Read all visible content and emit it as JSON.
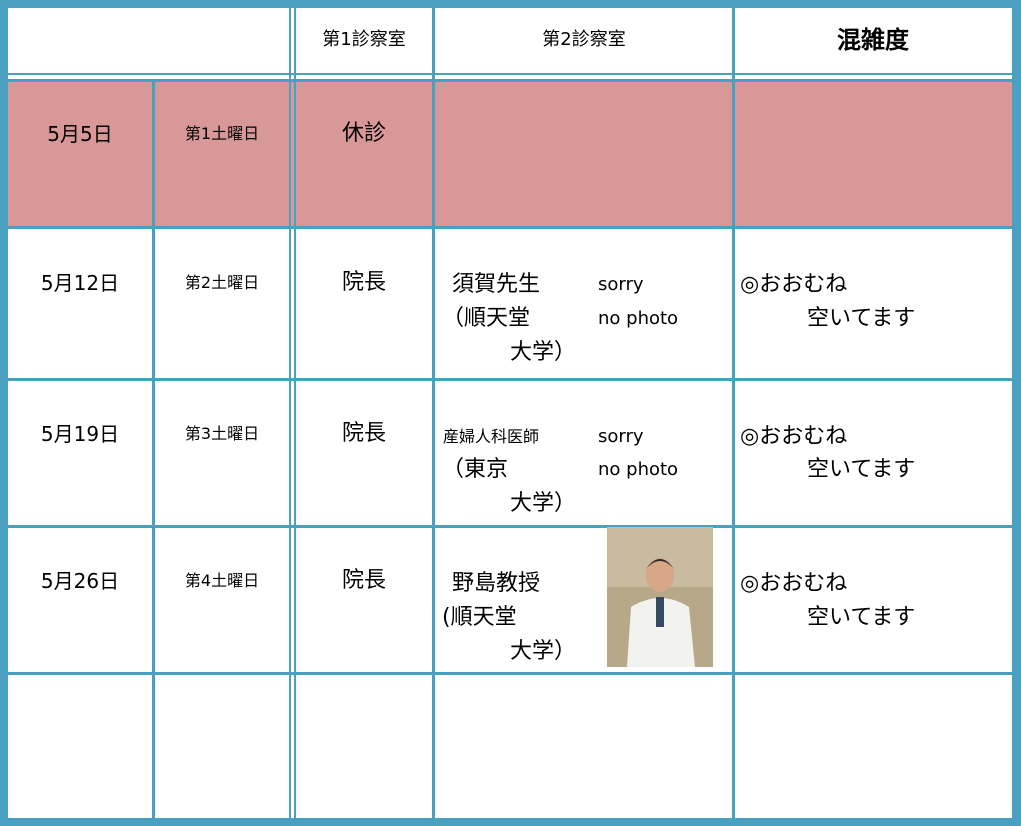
{
  "table": {
    "header": [
      "第1診察室",
      "第2診察室",
      "混雑度"
    ],
    "rows": [
      {
        "date": "5月5日",
        "week": "第1土曜日",
        "room1": "休診"
      },
      {
        "date": "5月12日",
        "week": "第2土曜日",
        "room1": "院長",
        "doctor": [
          "須賀先生",
          "（順天堂",
          "大学）"
        ],
        "photo_note": [
          "sorry",
          "no photo"
        ],
        "crowd": [
          "◎おおむね",
          "空いてます"
        ]
      },
      {
        "date": "5月19日",
        "week": "第3土曜日",
        "room1": "院長",
        "doctor": [
          "産婦人科医師",
          "（東京",
          "大学）"
        ],
        "photo_note": [
          "sorry",
          "no photo"
        ],
        "crowd": [
          "◎おおむね",
          "空いてます"
        ]
      },
      {
        "date": "5月26日",
        "week": "第4土曜日",
        "room1": "院長",
        "doctor": [
          "野島教授",
          "(順天堂",
          "大学）"
        ],
        "crowd": [
          "◎おおむね",
          "空いてます"
        ]
      }
    ]
  }
}
